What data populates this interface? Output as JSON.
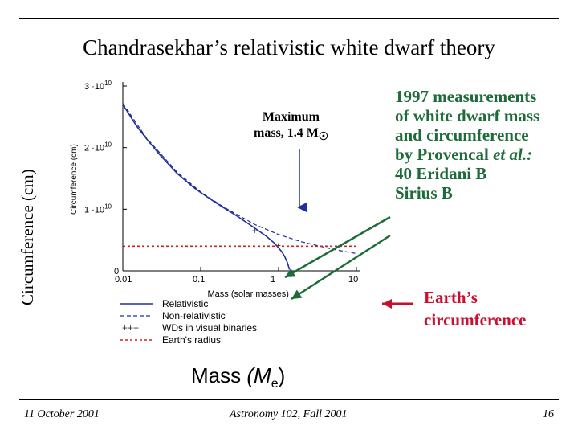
{
  "slide": {
    "title": "Chandrasekhar’s relativistic white dwarf theory",
    "ylabel_big": "Circumference (cm)",
    "xlabel_big": "Mass",
    "xlabel_big_unit": "(M",
    "xlabel_big_unit_sub": "e",
    "xlabel_big_close": ")",
    "annotation_max": [
      "Maximum",
      "mass, 1.4 M"
    ],
    "annotation_max_sub": "☉",
    "measurements": [
      "1997 measurements",
      "of white dwarf mass",
      "and circumference",
      "by Provencal",
      "40 Eridani B",
      "Sirius B"
    ],
    "measurements_italic": "et al.:",
    "earth": [
      "Earth’s",
      "circumference"
    ],
    "footer_left": "11 October 2001",
    "footer_center": "Astronomy 102, Fall 2001",
    "footer_right": "16"
  },
  "colors": {
    "relativistic": "#1f2f9e",
    "nonrelativistic": "#1f2f9e",
    "earth_line": "#cc2222",
    "green_arrow": "#1e6b3a",
    "red_arrow": "#c8102e"
  },
  "chart_data": {
    "type": "line",
    "xscale": "log",
    "xlim": [
      0.01,
      10
    ],
    "ylim": [
      0,
      30000000000.0
    ],
    "xlabel": "Mass (solar masses)",
    "ylabel": "Circumference (cm)",
    "xticks": [
      "0.01",
      "0.1",
      "1",
      "10"
    ],
    "yticks": [
      "0",
      "1 ·10^10",
      "2 ·10^10",
      "3 ·10^10"
    ],
    "series": [
      {
        "name": "Relativistic",
        "style": "solid",
        "x": [
          0.01,
          0.015,
          0.02,
          0.03,
          0.05,
          0.08,
          0.1,
          0.15,
          0.2,
          0.3,
          0.5,
          0.7,
          0.9,
          1.1,
          1.2,
          1.3,
          1.38
        ],
        "y": [
          27000000000.0,
          23500000000.0,
          21500000000.0,
          18800000000.0,
          15800000000.0,
          13600000000.0,
          12700000000.0,
          11200000000.0,
          10200000000.0,
          8800000000.0,
          6900000000.0,
          5600000000.0,
          4400000000.0,
          3100000000.0,
          2300000000.0,
          1300000000.0,
          200000000.0
        ]
      },
      {
        "name": "Non-relativistic",
        "style": "dashed",
        "x": [
          0.01,
          0.02,
          0.05,
          0.1,
          0.2,
          0.5,
          1,
          2,
          5,
          10
        ],
        "y": [
          27200000000.0,
          21600000000.0,
          16000000000.0,
          12800000000.0,
          10300000000.0,
          7500000000.0,
          5900000000.0,
          4700000000.0,
          3500000000.0,
          2800000000.0
        ]
      },
      {
        "name": "WDs in visual binaries",
        "style": "markers",
        "x": [
          0.5,
          1.0
        ],
        "y": [
          6500000000.0,
          4100000000.0
        ]
      },
      {
        "name": "Earth's radius",
        "style": "dotted",
        "x": [
          0.01,
          10
        ],
        "y": [
          4000000000.0,
          4000000000.0
        ]
      }
    ],
    "legend": [
      "Relativistic",
      "Non-relativistic",
      "WDs in visual binaries",
      "Earth's radius"
    ],
    "legend_glyph_markers": "+++"
  }
}
